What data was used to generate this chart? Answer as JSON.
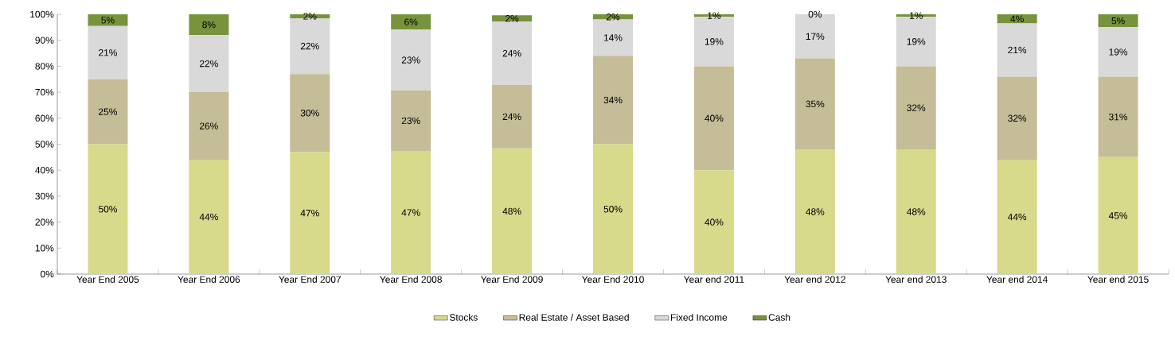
{
  "chart_data": {
    "type": "bar",
    "stacked": true,
    "legend": "bottom",
    "categories": [
      "Year End 2005",
      "Year End 2006",
      "Year End 2007",
      "Year End 2008",
      "Year End 2009",
      "Year End 2010",
      "Year end 2011",
      "Year end 2012",
      "Year end 2013",
      "Year end 2014",
      "Year end 2015"
    ],
    "ylim": [
      0,
      100
    ],
    "yticks": [
      {
        "value": 0,
        "label": "0%"
      },
      {
        "value": 10,
        "label": "10%"
      },
      {
        "value": 20,
        "label": "20%"
      },
      {
        "value": 30,
        "label": "30%"
      },
      {
        "value": 40,
        "label": "40%"
      },
      {
        "value": 50,
        "label": "50%"
      },
      {
        "value": 60,
        "label": "60%"
      },
      {
        "value": 70,
        "label": "70%"
      },
      {
        "value": 80,
        "label": "80%"
      },
      {
        "value": 90,
        "label": "90%"
      },
      {
        "value": 100,
        "label": "100%"
      }
    ],
    "series": [
      {
        "name": "Stocks",
        "color": "#d7d98b",
        "values": [
          50,
          44,
          47,
          47.4,
          48.4,
          50,
          40,
          48,
          48,
          44,
          45
        ],
        "value_labels": [
          "50%",
          "44%",
          "47%",
          "47%",
          "48%",
          "50%",
          "40%",
          "48%",
          "48%",
          "44%",
          "45%"
        ]
      },
      {
        "name": "Real Estate / Asset Based",
        "color": "#c4bd97",
        "values": [
          25,
          26,
          30,
          23.3,
          24.4,
          34,
          40,
          35,
          32,
          32,
          31
        ],
        "value_labels": [
          "25%",
          "26%",
          "30%",
          "23%",
          "24%",
          "34%",
          "40%",
          "35%",
          "32%",
          "32%",
          "31%"
        ]
      },
      {
        "name": "Fixed Income",
        "color": "#d9d9d9",
        "values": [
          20.5,
          22,
          21.5,
          23.4,
          24.4,
          14,
          19,
          17,
          19,
          20.5,
          19
        ],
        "value_labels": [
          "21%",
          "22%",
          "22%",
          "23%",
          "24%",
          "14%",
          "19%",
          "17%",
          "19%",
          "21%",
          "19%"
        ]
      },
      {
        "name": "Cash",
        "color": "#77933c",
        "values": [
          4.5,
          8,
          1.5,
          5.9,
          2.4,
          2,
          1,
          0,
          1,
          3.5,
          5
        ],
        "value_labels": [
          "5%",
          "8%",
          "2%",
          "6%",
          "2%",
          "2%",
          "1%",
          "0%",
          "1%",
          "4%",
          "5%"
        ]
      }
    ]
  }
}
